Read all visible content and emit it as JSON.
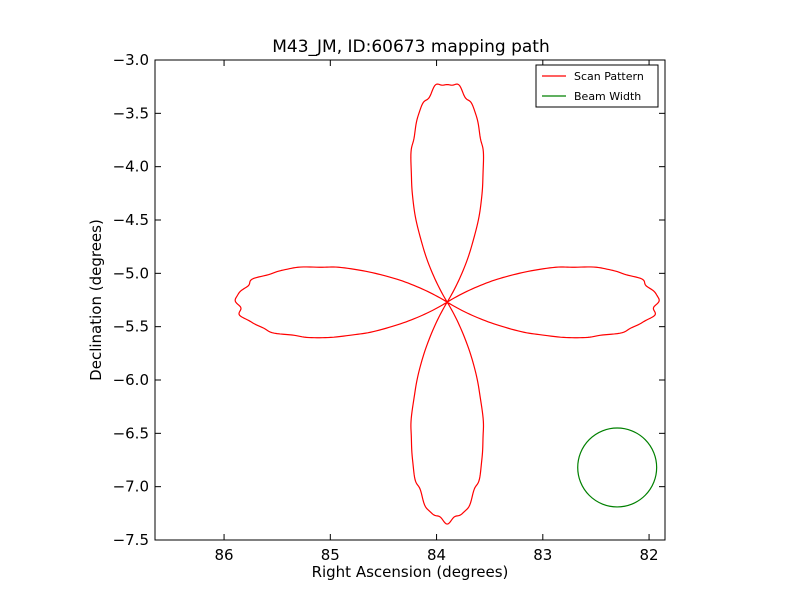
{
  "chart_data": {
    "type": "line",
    "title": "M43_JM, ID:60673 mapping path",
    "xlabel": "Right Ascension (degrees)",
    "ylabel": "Declination (degrees)",
    "xlim": [
      86.65,
      81.85
    ],
    "ylim": [
      -7.5,
      -3.0
    ],
    "x_inverted": true,
    "xticks": [
      86,
      85,
      84,
      83,
      82
    ],
    "xtick_labels": [
      "86",
      "85",
      "84",
      "83",
      "82"
    ],
    "yticks": [
      -3.0,
      -3.5,
      -4.0,
      -4.5,
      -5.0,
      -5.5,
      -6.0,
      -6.5,
      -7.0,
      -7.5
    ],
    "ytick_labels": [
      "−3.0",
      "−3.5",
      "−4.0",
      "−4.5",
      "−5.0",
      "−5.5",
      "−6.0",
      "−6.5",
      "−7.0",
      "−7.5"
    ],
    "grid": false,
    "legend_position": "top-right",
    "series": [
      {
        "name": "Scan Pattern",
        "color": "#ff0000",
        "shape": "four-petal rose (quadrifolium) scan path",
        "center": [
          83.9,
          -5.27
        ],
        "petal_extent_ra": 2.0,
        "petal_extent_dec": 2.0,
        "x": [
          83.9,
          84.77,
          85.42,
          85.85,
          85.85,
          85.42,
          84.77,
          83.9,
          83.03,
          82.38,
          81.95,
          81.95,
          82.38,
          83.03,
          83.9
        ],
        "y": [
          -5.27,
          -4.75,
          -4.85,
          -5.15,
          -5.39,
          -5.69,
          -5.79,
          -5.27,
          -4.75,
          -4.85,
          -5.15,
          -5.39,
          -5.69,
          -5.79,
          -5.27
        ]
      },
      {
        "name": "Beam Width",
        "color": "#008000",
        "shape": "circle",
        "center": [
          82.3,
          -6.82
        ],
        "radius_dec": 0.37
      }
    ],
    "legend": [
      {
        "label": "Scan Pattern",
        "color": "#ff0000"
      },
      {
        "label": "Beam Width",
        "color": "#008000"
      }
    ]
  }
}
